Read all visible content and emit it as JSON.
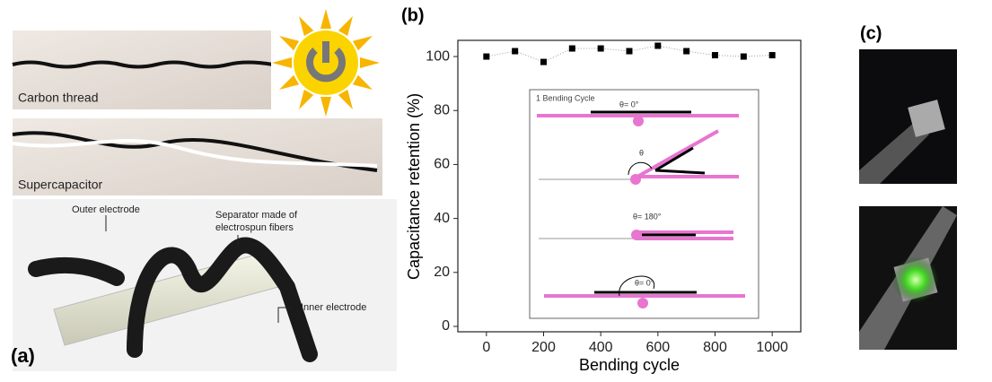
{
  "chart_data": {
    "type": "scatter",
    "label": "(b)",
    "x": [
      0,
      100,
      200,
      300,
      400,
      500,
      600,
      700,
      800,
      900,
      1000
    ],
    "values": [
      100,
      102,
      98,
      103,
      103,
      102,
      104,
      102,
      100.5,
      100,
      100.5
    ],
    "color": "#000000",
    "xlim": [
      -100,
      1100
    ],
    "ylim": [
      -2,
      106
    ],
    "xticks": [
      0,
      200,
      400,
      600,
      800,
      1000
    ],
    "yticks": [
      0,
      20,
      40,
      60,
      80,
      100
    ],
    "x_label": "Bending cycle",
    "y_label": "Capacitance retention (%)",
    "inset": {
      "title": "1 Bending Cycle",
      "labels": [
        "θ= 0°",
        "θ",
        "θ= 180°",
        "θ= 0°"
      ]
    }
  },
  "panel_a": {
    "label": "(a)",
    "photo_labels": [
      "Carbon thread",
      "Supercapacitor"
    ],
    "callouts": [
      "Outer electrode",
      "Separator made of",
      "electrospun fibers",
      "Inner electrode"
    ]
  },
  "panel_c": {
    "label": "(c)"
  }
}
